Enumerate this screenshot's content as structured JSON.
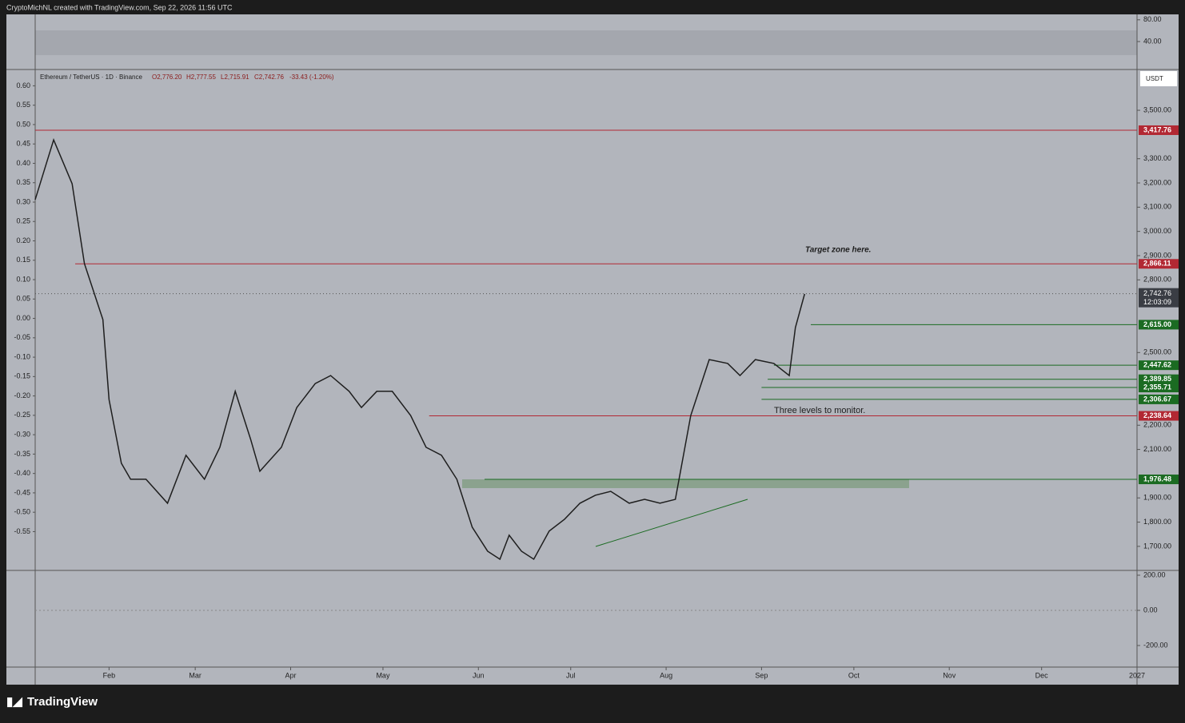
{
  "header": {
    "attribution": "CryptoMichNL created with TradingView.com, Sep 22, 2026 11:56 UTC",
    "symbol": "Ethereum / TetherUS · 1D · Binance",
    "open": "O2,776.20",
    "high": "H2,777.55",
    "low": "L2,715.91",
    "close": "C2,742.76",
    "change": "-33.43 (-1.20%)",
    "currency": "USDT",
    "logo": "TradingView"
  },
  "chart_data": {
    "type": "line",
    "color": "#1e1e1e",
    "x": [
      7,
      13,
      19,
      23,
      29,
      31,
      35,
      38,
      43,
      50,
      56,
      62,
      67,
      72,
      77,
      80,
      87,
      92,
      98,
      103,
      109,
      113,
      118,
      123,
      129,
      134,
      139,
      144,
      149,
      154,
      158,
      161,
      165,
      169,
      174,
      179,
      184,
      189,
      194,
      200,
      205,
      210,
      215,
      220,
      226,
      232,
      236,
      241,
      247,
      252,
      254,
      257,
      262,
      267,
      272,
      276,
      279,
      281
    ],
    "series": [
      {
        "name": "ETH/USDT",
        "color": "#1e1e1e",
        "values": [
          3131,
          3378,
          3197,
          2867,
          2636,
          2306,
          2043,
          1977,
          1977,
          1878,
          2076,
          1977,
          2109,
          2340,
          2142,
          2010,
          2109,
          2273,
          2372,
          2405,
          2340,
          2273,
          2340,
          2340,
          2240,
          2109,
          2076,
          1977,
          1779,
          1680,
          1647,
          1746,
          1680,
          1647,
          1763,
          1812,
          1878,
          1911,
          1927,
          1878,
          1894,
          1878,
          1894,
          2240,
          2471,
          2455,
          2405,
          2471,
          2455,
          2405,
          2603,
          2742,
          null,
          null,
          null,
          null,
          null,
          null
        ]
      }
    ],
    "xlim": [
      7,
      365
    ],
    "xticks": [
      {
        "value": 31,
        "label": "Feb"
      },
      {
        "value": 59,
        "label": "Mar"
      },
      {
        "value": 90,
        "label": "Apr"
      },
      {
        "value": 120,
        "label": "May"
      },
      {
        "value": 151,
        "label": "Jun"
      },
      {
        "value": 181,
        "label": "Jul"
      },
      {
        "value": 212,
        "label": "Aug"
      },
      {
        "value": 243,
        "label": "Sep"
      },
      {
        "value": 273,
        "label": "Oct"
      },
      {
        "value": 304,
        "label": "Nov"
      },
      {
        "value": 334,
        "label": "Dec"
      },
      {
        "value": 365,
        "label": "2027"
      }
    ],
    "ylim": [
      1604,
      3665
    ],
    "yticks": [
      {
        "value": 3500,
        "label": "3,500.00"
      },
      {
        "value": 3300,
        "label": "3,300.00"
      },
      {
        "value": 3200,
        "label": "3,200.00"
      },
      {
        "value": 3100,
        "label": "3,100.00"
      },
      {
        "value": 3000,
        "label": "3,000.00"
      },
      {
        "value": 2900,
        "label": "2,900.00"
      },
      {
        "value": 2800,
        "label": "2,800.00"
      },
      {
        "value": 2500,
        "label": "2,500.00"
      },
      {
        "value": 2200,
        "label": "2,200.00"
      },
      {
        "value": 2100,
        "label": "2,100.00"
      },
      {
        "value": 1900,
        "label": "1,900.00"
      },
      {
        "value": 1800,
        "label": "1,800.00"
      },
      {
        "value": 1700,
        "label": "1,700.00"
      }
    ],
    "y2lim": [
      -0.648,
      0.64
    ],
    "y2ticks": [
      {
        "value": 0.6,
        "label": "0.60"
      },
      {
        "value": 0.55,
        "label": "0.55"
      },
      {
        "value": 0.5,
        "label": "0.50"
      },
      {
        "value": 0.45,
        "label": "0.45"
      },
      {
        "value": 0.4,
        "label": "0.40"
      },
      {
        "value": 0.35,
        "label": "0.35"
      },
      {
        "value": 0.3,
        "label": "0.30"
      },
      {
        "value": 0.25,
        "label": "0.25"
      },
      {
        "value": 0.2,
        "label": "0.20"
      },
      {
        "value": 0.15,
        "label": "0.15"
      },
      {
        "value": 0.1,
        "label": "0.10"
      },
      {
        "value": 0.05,
        "label": "0.05"
      },
      {
        "value": 0,
        "label": "0.00"
      },
      {
        "value": -0.05,
        "label": "-0.05"
      },
      {
        "value": -0.1,
        "label": "-0.10"
      },
      {
        "value": -0.15,
        "label": "-0.15"
      },
      {
        "value": -0.2,
        "label": "-0.20"
      },
      {
        "value": -0.25,
        "label": "-0.25"
      },
      {
        "value": -0.3,
        "label": "-0.30"
      },
      {
        "value": -0.35,
        "label": "-0.35"
      },
      {
        "value": -0.4,
        "label": "-0.40"
      },
      {
        "value": -0.45,
        "label": "-0.45"
      },
      {
        "value": -0.5,
        "label": "-0.50"
      },
      {
        "value": -0.55,
        "label": "-0.55"
      }
    ],
    "levels": [
      {
        "value": 3417.76,
        "label": "3,417.76",
        "color": "#b22833",
        "start": 7
      },
      {
        "value": 2866.11,
        "label": "2,866.11",
        "color": "#b22833",
        "start": 20
      },
      {
        "value": 2615,
        "label": "2,615.00",
        "color": "#1b6b22",
        "start": 259
      },
      {
        "value": 2447.62,
        "label": "2,447.62",
        "color": "#1b6b22",
        "start": 247
      },
      {
        "value": 2389.85,
        "label": "2,389.85",
        "color": "#1b6b22",
        "start": 245
      },
      {
        "value": 2355.71,
        "label": "2,355.71",
        "color": "#1b6b22",
        "start": 243
      },
      {
        "value": 2306.67,
        "label": "2,306.67",
        "color": "#1b6b22",
        "start": 243
      },
      {
        "value": 2238.64,
        "label": "2,238.64",
        "color": "#b22833",
        "start": 135
      },
      {
        "value": 1976.48,
        "label": "1,976.48",
        "color": "#1b6b22",
        "start": 153
      }
    ],
    "last_price": {
      "value": 2742.76,
      "label": "2,742.76",
      "countdown": "12:03:09"
    },
    "annotations": [
      "Target zone here.",
      "Three levels to monitor."
    ],
    "rsi": {
      "yticks": [
        {
          "value": 80,
          "label": "80.00"
        },
        {
          "value": 40,
          "label": "40.00"
        }
      ]
    },
    "macd": {
      "yticks": [
        {
          "value": 200,
          "label": "200.00"
        },
        {
          "value": 0,
          "label": "0.00"
        },
        {
          "value": -200,
          "label": "-200.00"
        }
      ]
    }
  }
}
